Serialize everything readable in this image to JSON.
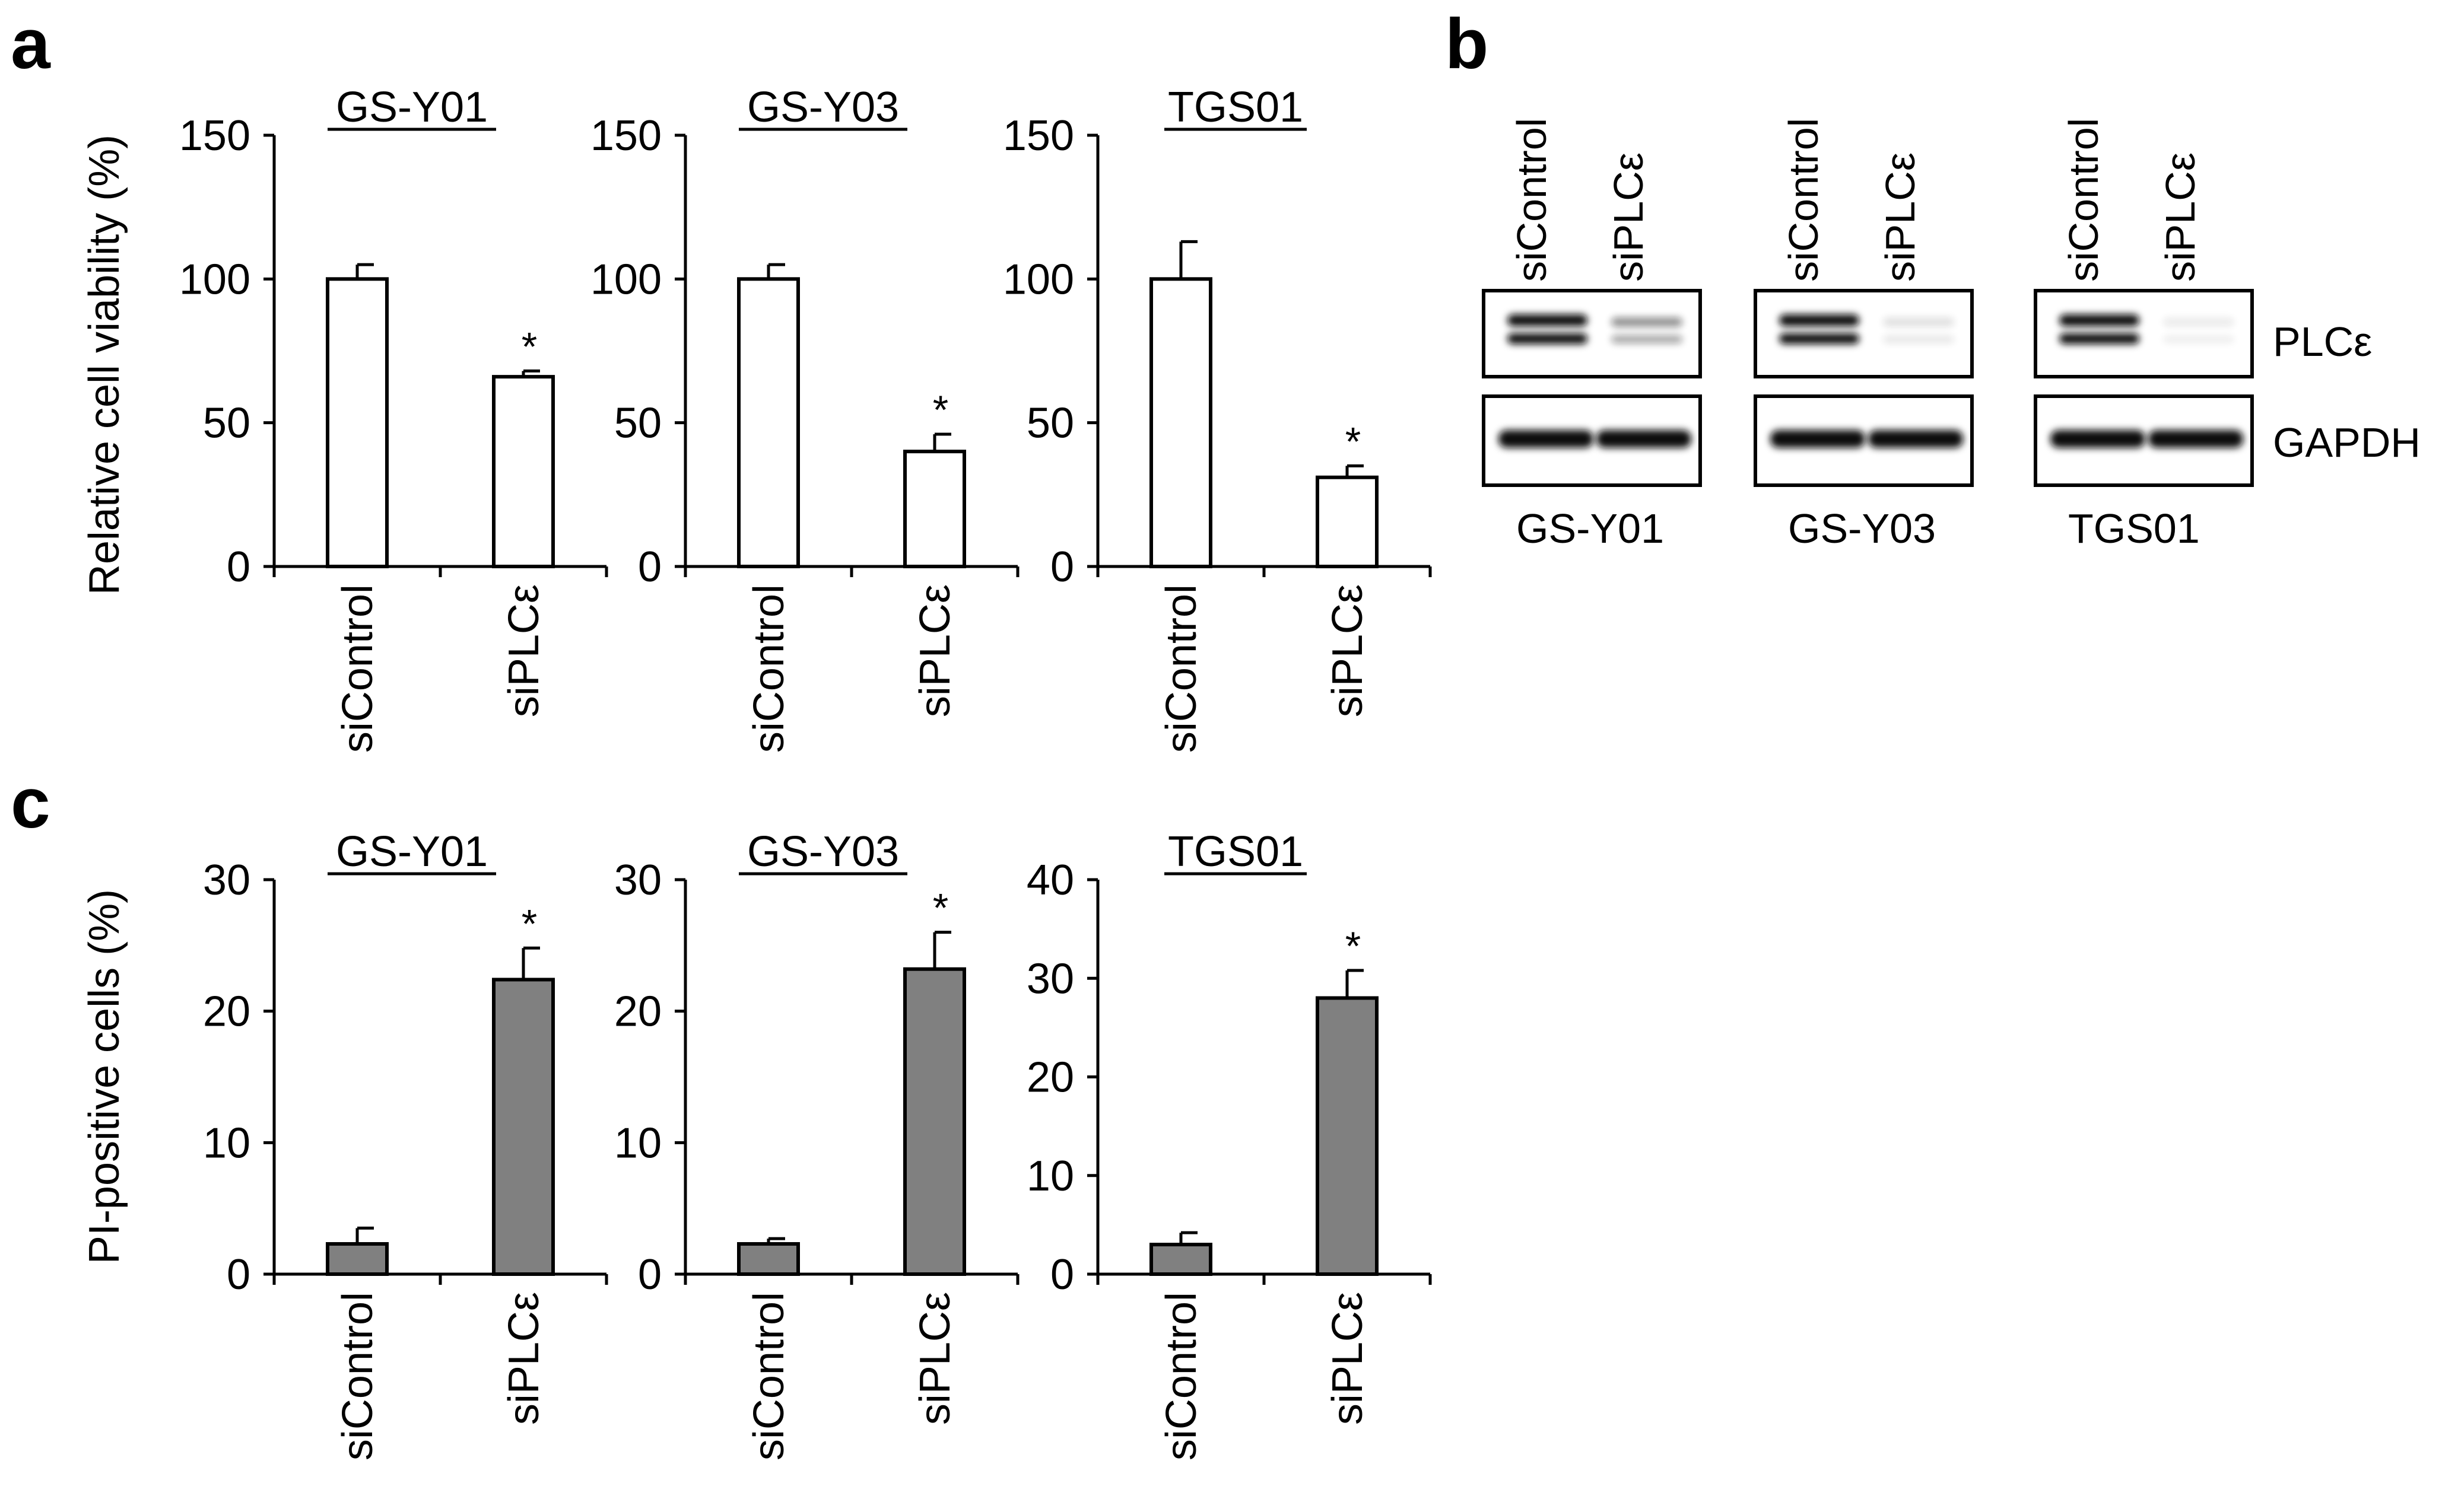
{
  "panels": {
    "a": "a",
    "b": "b",
    "c": "c"
  },
  "colors": {
    "bar_a": "#ffffff",
    "bar_c": "#808080",
    "stroke": "#000000",
    "band": "#111111"
  },
  "chart_data": [
    {
      "panel": "a",
      "type": "bar",
      "title": "GS-Y01",
      "ylabel": "Relative cell viability (%)",
      "categories": [
        "siControl",
        "siPLCε"
      ],
      "values": [
        100,
        66
      ],
      "errors": [
        5,
        2
      ],
      "significance": [
        "",
        "*"
      ],
      "ylim": [
        0,
        150
      ],
      "yticks": [
        "0",
        "50",
        "100",
        "150"
      ]
    },
    {
      "panel": "a",
      "type": "bar",
      "title": "GS-Y03",
      "ylabel": "",
      "categories": [
        "siControl",
        "siPLCε"
      ],
      "values": [
        100,
        40
      ],
      "errors": [
        5,
        6
      ],
      "significance": [
        "",
        "*"
      ],
      "ylim": [
        0,
        150
      ],
      "yticks": [
        "0",
        "50",
        "100",
        "150"
      ]
    },
    {
      "panel": "a",
      "type": "bar",
      "title": "TGS01",
      "ylabel": "",
      "categories": [
        "siControl",
        "siPLCε"
      ],
      "values": [
        100,
        31
      ],
      "errors": [
        13,
        4
      ],
      "significance": [
        "",
        "*"
      ],
      "ylim": [
        0,
        150
      ],
      "yticks": [
        "0",
        "50",
        "100",
        "150"
      ]
    },
    {
      "panel": "c",
      "type": "bar",
      "title": "GS-Y01",
      "ylabel": "PI-positive cells (%)",
      "categories": [
        "siControl",
        "siPLCε"
      ],
      "values": [
        2.3,
        22.4
      ],
      "errors": [
        1.2,
        2.4
      ],
      "significance": [
        "",
        "*"
      ],
      "ylim": [
        0,
        30
      ],
      "yticks": [
        "0",
        "10",
        "20",
        "30"
      ]
    },
    {
      "panel": "c",
      "type": "bar",
      "title": "GS-Y03",
      "ylabel": "",
      "categories": [
        "siControl",
        "siPLCε"
      ],
      "values": [
        2.3,
        23.2
      ],
      "errors": [
        0.4,
        2.8
      ],
      "significance": [
        "",
        "*"
      ],
      "ylim": [
        0,
        30
      ],
      "yticks": [
        "0",
        "10",
        "20",
        "30"
      ]
    },
    {
      "panel": "c",
      "type": "bar",
      "title": "TGS01",
      "ylabel": "",
      "categories": [
        "siControl",
        "siPLCε"
      ],
      "values": [
        3,
        28
      ],
      "errors": [
        1.2,
        2.8
      ],
      "significance": [
        "",
        "*"
      ],
      "ylim": [
        0,
        40
      ],
      "yticks": [
        "0",
        "10",
        "20",
        "30",
        "40"
      ]
    }
  ],
  "western_blot": {
    "lanes": [
      "siControl",
      "siPLCε"
    ],
    "proteins": [
      "PLCε",
      "GAPDH"
    ],
    "cell_lines": [
      {
        "name": "GS-Y01",
        "plce_knockdown_intensity": 0.45
      },
      {
        "name": "GS-Y03",
        "plce_knockdown_intensity": 0.12
      },
      {
        "name": "TGS01",
        "plce_knockdown_intensity": 0.08
      }
    ]
  }
}
